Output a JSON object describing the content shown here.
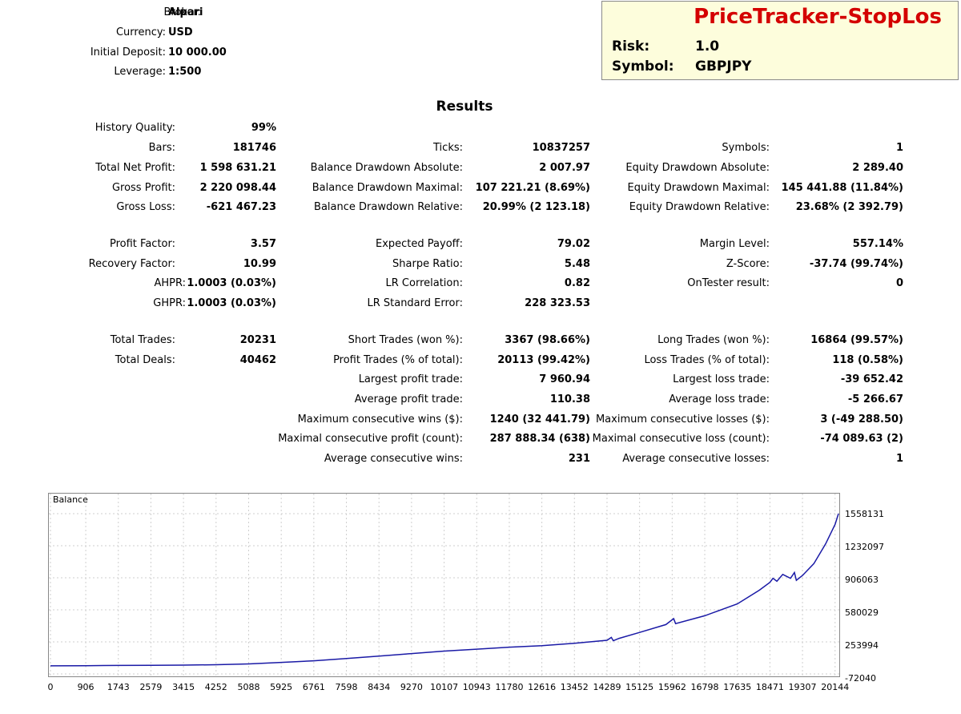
{
  "broker": {
    "rows": [
      {
        "label": "Broker:",
        "value": "Alpari"
      },
      {
        "label": "Currency:",
        "value": "USD"
      },
      {
        "label": "Initial Deposit:",
        "value": "10 000.00"
      },
      {
        "label": "Leverage:",
        "value": "1:500"
      }
    ]
  },
  "header": {
    "title": "PriceTracker-StopLos",
    "risk_label": "Risk:",
    "risk_value": "1.0",
    "symbol_label": "Symbol:",
    "symbol_value": "GBPJPY",
    "title_color": "#d40000",
    "background_color": "#fdfddc"
  },
  "results_title": "Results",
  "stats": {
    "history_quality": {
      "label": "History Quality:",
      "value": "99%"
    },
    "group1": {
      "col1": [
        {
          "label": "Bars:",
          "value": "181746"
        },
        {
          "label": "Total Net Profit:",
          "value": "1 598 631.21"
        },
        {
          "label": "Gross Profit:",
          "value": "2 220 098.44"
        },
        {
          "label": "Gross Loss:",
          "value": "-621 467.23"
        }
      ],
      "col2": [
        {
          "label": "Ticks:",
          "value": "10837257"
        },
        {
          "label": "Balance Drawdown Absolute:",
          "value": "2 007.97"
        },
        {
          "label": "Balance Drawdown Maximal:",
          "value": "107 221.21 (8.69%)"
        },
        {
          "label": "Balance Drawdown Relative:",
          "value": "20.99% (2 123.18)"
        }
      ],
      "col3": [
        {
          "label": "Symbols:",
          "value": "1"
        },
        {
          "label": "Equity Drawdown Absolute:",
          "value": "2 289.40"
        },
        {
          "label": "Equity Drawdown Maximal:",
          "value": "145 441.88 (11.84%)"
        },
        {
          "label": "Equity Drawdown Relative:",
          "value": "23.68% (2 392.79)"
        }
      ]
    },
    "group2": {
      "col1": [
        {
          "label": "Profit Factor:",
          "value": "3.57"
        },
        {
          "label": "Recovery Factor:",
          "value": "10.99"
        },
        {
          "label": "AHPR:",
          "value": "1.0003 (0.03%)"
        },
        {
          "label": "GHPR:",
          "value": "1.0003 (0.03%)"
        }
      ],
      "col2": [
        {
          "label": "Expected Payoff:",
          "value": "79.02"
        },
        {
          "label": "Sharpe Ratio:",
          "value": "5.48"
        },
        {
          "label": "LR Correlation:",
          "value": "0.82"
        },
        {
          "label": "LR Standard Error:",
          "value": "228 323.53"
        }
      ],
      "col3": [
        {
          "label": "Margin Level:",
          "value": "557.14%"
        },
        {
          "label": "Z-Score:",
          "value": "-37.74 (99.74%)"
        },
        {
          "label": "OnTester result:",
          "value": "0"
        }
      ]
    },
    "group3": {
      "col1": [
        {
          "label": "Total Trades:",
          "value": "20231"
        },
        {
          "label": "Total Deals:",
          "value": "40462"
        }
      ],
      "col2": [
        {
          "label": "Short Trades (won %):",
          "value": "3367 (98.66%)"
        },
        {
          "label": "Profit Trades (% of total):",
          "value": "20113 (99.42%)"
        },
        {
          "label": "Largest profit trade:",
          "value": "7 960.94"
        },
        {
          "label": "Average profit trade:",
          "value": "110.38"
        },
        {
          "label": "Maximum consecutive wins ($):",
          "value": "1240 (32 441.79)"
        },
        {
          "label": "Maximal consecutive profit (count):",
          "value": "287 888.34 (638)"
        },
        {
          "label": "Average consecutive wins:",
          "value": "231"
        }
      ],
      "col3": [
        {
          "label": "Long Trades (won %):",
          "value": "16864 (99.57%)"
        },
        {
          "label": "Loss Trades (% of total):",
          "value": "118 (0.58%)"
        },
        {
          "label": "Largest loss trade:",
          "value": "-39 652.42"
        },
        {
          "label": "Average loss trade:",
          "value": "-5 266.67"
        },
        {
          "label": "Maximum consecutive losses ($):",
          "value": "3 (-49 288.50)"
        },
        {
          "label": "Maximal consecutive loss (count):",
          "value": "-74 089.63 (2)"
        },
        {
          "label": "Average consecutive losses:",
          "value": "1"
        }
      ]
    }
  },
  "chart_data": {
    "type": "line",
    "title": "Balance",
    "line_color": "#1a1aa6",
    "grid": true,
    "y_ticks": [
      "1558131",
      "1232097",
      "906063",
      "580029",
      "253994",
      "-72040"
    ],
    "x_ticks": [
      "0",
      "906",
      "1743",
      "2579",
      "3415",
      "4252",
      "5088",
      "5925",
      "6761",
      "7598",
      "8434",
      "9270",
      "10107",
      "10943",
      "11780",
      "12616",
      "13452",
      "14289",
      "15125",
      "15962",
      "16798",
      "17635",
      "18471",
      "19307",
      "20144"
    ],
    "xlim": [
      0,
      20231
    ],
    "ylim": [
      -72040,
      1558131
    ],
    "series": [
      {
        "x": [
          0,
          906,
          1743,
          2579,
          3415,
          4252,
          5088,
          5925,
          6761,
          7598,
          8434,
          9270,
          10107,
          10943,
          11780,
          12616,
          13452,
          14289,
          14400,
          14450,
          14600,
          15125,
          15800,
          16000,
          16050,
          16798,
          17635,
          18200,
          18471,
          18550,
          18650,
          18800,
          19000,
          19100,
          19150,
          19307,
          19600,
          19900,
          20144,
          20231
        ],
        "y": [
          10000,
          12000,
          14000,
          16000,
          18000,
          22000,
          30000,
          45000,
          62000,
          85000,
          110000,
          135000,
          160000,
          180000,
          200000,
          215000,
          240000,
          270000,
          300000,
          265000,
          290000,
          350000,
          430000,
          490000,
          440000,
          520000,
          640000,
          780000,
          860000,
          900000,
          870000,
          940000,
          900000,
          960000,
          880000,
          930000,
          1050000,
          1250000,
          1450000,
          1558000
        ]
      }
    ]
  }
}
